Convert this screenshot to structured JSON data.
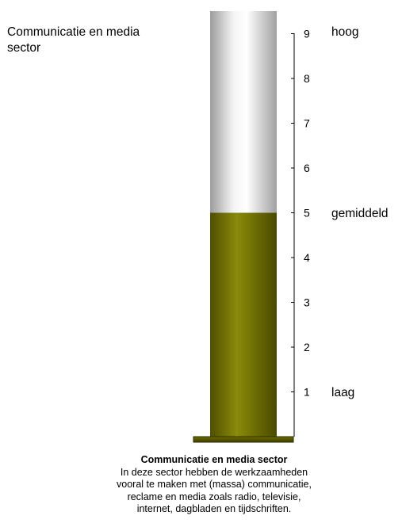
{
  "header": {
    "sector_title": "Communicatie en media\nsector"
  },
  "gauge_labels": {
    "high": "hoog",
    "mid": "gemiddeld",
    "low": "laag"
  },
  "caption": {
    "title": "Communicatie en media sector",
    "body": "In deze sector hebben de werkzaamheden\nvooral te maken met (massa) communicatie,\nreclame en media zoals radio, televisie,\ninternet, dagbladen en tijdschriften."
  },
  "colors": {
    "fill": "#6b6b00",
    "fill_highlight": "#9a9a10",
    "tube": "#e6e6e6",
    "tube_edge": "#a8a8a8"
  },
  "chart_data": {
    "type": "bar",
    "categories": [
      "Communicatie en media sector"
    ],
    "values": [
      5
    ],
    "ylim": [
      0,
      9
    ],
    "yticks": [
      "1",
      "2",
      "3",
      "4",
      "5",
      "6",
      "7",
      "8",
      "9"
    ],
    "grid": false
  }
}
